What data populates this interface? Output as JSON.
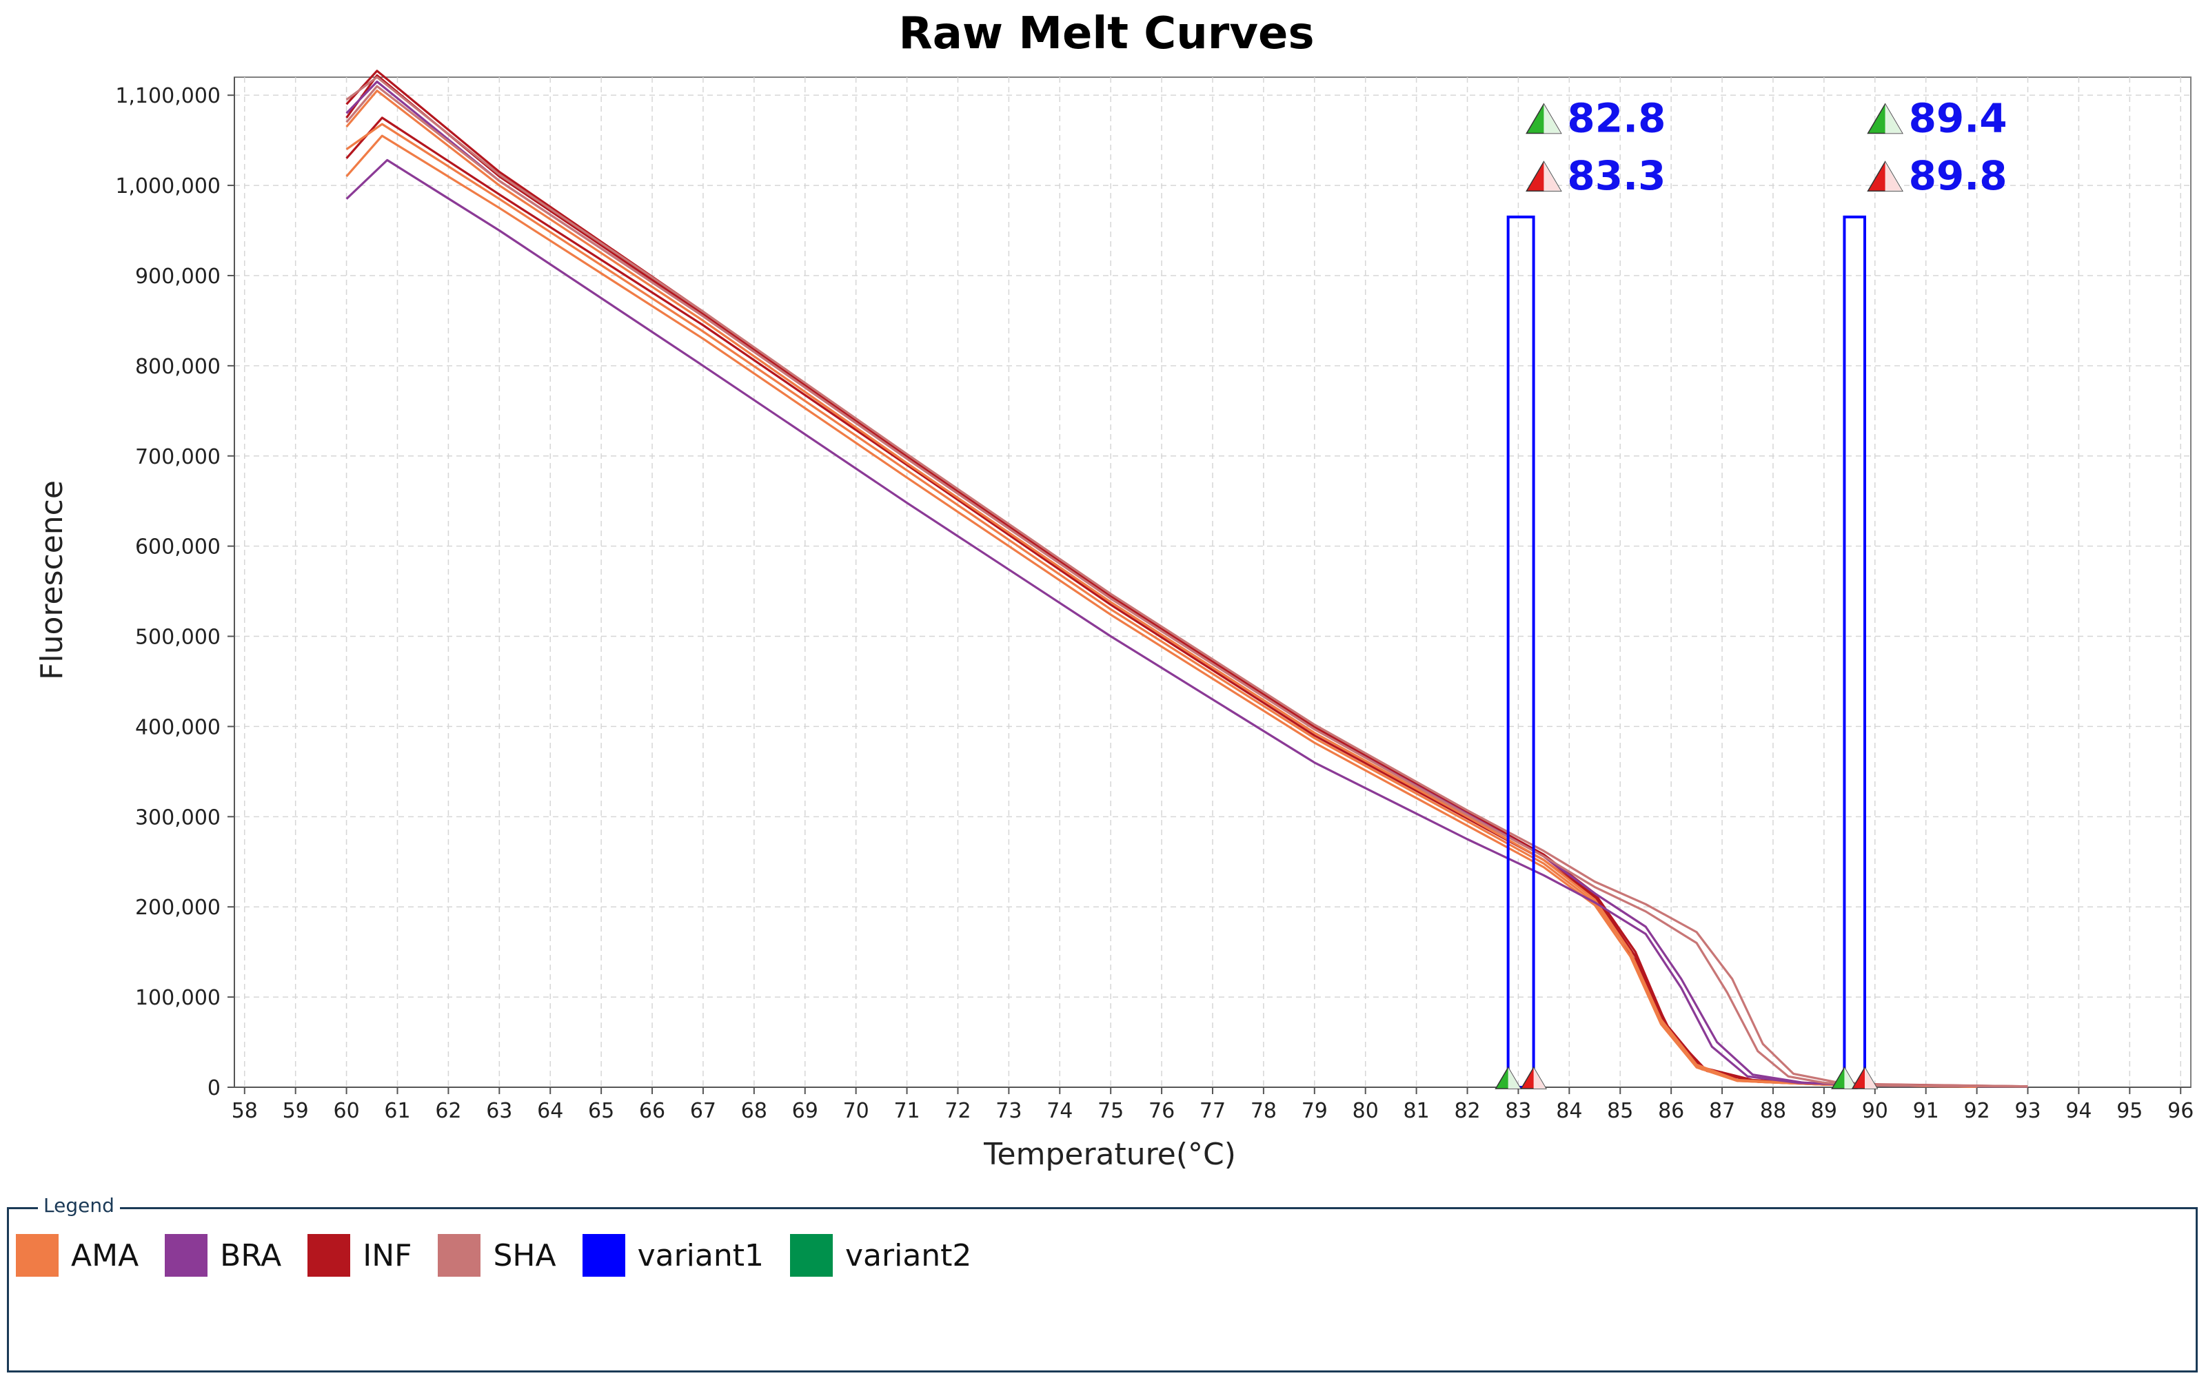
{
  "chart_data": {
    "type": "line",
    "title": "Raw Melt Curves",
    "xlabel": "Temperature(°C)",
    "ylabel": "Fluorescence",
    "xlim": [
      57.8,
      96.2
    ],
    "ylim": [
      0,
      1100000
    ],
    "xticks": [
      58,
      59,
      60,
      61,
      62,
      63,
      64,
      65,
      66,
      67,
      68,
      69,
      70,
      71,
      72,
      73,
      74,
      75,
      76,
      77,
      78,
      79,
      80,
      81,
      82,
      83,
      84,
      85,
      86,
      87,
      88,
      89,
      90,
      91,
      92,
      93,
      94,
      95,
      96
    ],
    "yticks": [
      0,
      100000,
      200000,
      300000,
      400000,
      500000,
      600000,
      700000,
      800000,
      900000,
      1000000,
      1100000
    ],
    "ytick_labels": [
      "0",
      "100,000",
      "200,000",
      "300,000",
      "400,000",
      "500,000",
      "600,000",
      "700,000",
      "800,000",
      "900,000",
      "1,000,000",
      "1,100,000"
    ],
    "grid": true,
    "legend_position": "bottom",
    "legend_title": "Legend",
    "legend": [
      {
        "label": "AMA",
        "color": "#f07c46"
      },
      {
        "label": "BRA",
        "color": "#8b3a96"
      },
      {
        "label": "INF",
        "color": "#b4161e"
      },
      {
        "label": "SHA",
        "color": "#c87676"
      },
      {
        "label": "variant1",
        "color": "#0000ff"
      },
      {
        "label": "variant2",
        "color": "#00914c"
      }
    ],
    "series": [
      {
        "group": "INF",
        "color": "#b4161e",
        "points": [
          [
            60,
            1090000
          ],
          [
            60.6,
            1127000
          ],
          [
            63,
            1015000
          ],
          [
            67,
            860000
          ],
          [
            71,
            700000
          ],
          [
            75,
            545000
          ],
          [
            79,
            400000
          ],
          [
            82,
            305000
          ],
          [
            83.5,
            258000
          ],
          [
            84.5,
            215000
          ],
          [
            85.3,
            150000
          ],
          [
            85.9,
            70000
          ],
          [
            86.6,
            22000
          ],
          [
            87.6,
            8000
          ],
          [
            89,
            4000
          ],
          [
            93,
            1000
          ]
        ]
      },
      {
        "group": "INF",
        "color": "#b4161e",
        "points": [
          [
            60,
            1030000
          ],
          [
            60.7,
            1075000
          ],
          [
            63,
            990000
          ],
          [
            67,
            845000
          ],
          [
            71,
            690000
          ],
          [
            75,
            535000
          ],
          [
            79,
            390000
          ],
          [
            82,
            298000
          ],
          [
            83.5,
            252000
          ],
          [
            84.5,
            210000
          ],
          [
            85.3,
            140000
          ],
          [
            86,
            60000
          ],
          [
            86.7,
            18000
          ],
          [
            87.7,
            6000
          ],
          [
            89,
            3000
          ],
          [
            92,
            800
          ]
        ]
      },
      {
        "group": "INF",
        "color": "#b4161e",
        "points": [
          [
            60,
            1075000
          ],
          [
            60.6,
            1122000
          ],
          [
            63,
            1010000
          ],
          [
            67,
            857000
          ],
          [
            71,
            698000
          ],
          [
            75,
            543000
          ],
          [
            79,
            398000
          ],
          [
            82,
            303000
          ],
          [
            83.5,
            256000
          ],
          [
            84.5,
            212000
          ],
          [
            85.3,
            145000
          ],
          [
            85.9,
            65000
          ],
          [
            86.6,
            20000
          ],
          [
            87.6,
            7000
          ],
          [
            89,
            3000
          ],
          [
            93,
            800
          ]
        ]
      },
      {
        "group": "AMA",
        "color": "#f07c46",
        "points": [
          [
            60,
            1040000
          ],
          [
            60.7,
            1068000
          ],
          [
            63,
            985000
          ],
          [
            67,
            838000
          ],
          [
            71,
            684000
          ],
          [
            75,
            530000
          ],
          [
            79,
            387000
          ],
          [
            82,
            295000
          ],
          [
            83.5,
            248000
          ],
          [
            84.5,
            205000
          ],
          [
            85.2,
            150000
          ],
          [
            85.8,
            75000
          ],
          [
            86.5,
            25000
          ],
          [
            87.3,
            8000
          ],
          [
            89,
            3000
          ],
          [
            92,
            500
          ]
        ]
      },
      {
        "group": "AMA",
        "color": "#f07c46",
        "points": [
          [
            60,
            1010000
          ],
          [
            60.7,
            1055000
          ],
          [
            63,
            975000
          ],
          [
            67,
            830000
          ],
          [
            71,
            676000
          ],
          [
            75,
            524000
          ],
          [
            79,
            382000
          ],
          [
            82,
            290000
          ],
          [
            83.5,
            244000
          ],
          [
            84.5,
            202000
          ],
          [
            85.2,
            145000
          ],
          [
            85.8,
            70000
          ],
          [
            86.5,
            22000
          ],
          [
            87.3,
            7000
          ],
          [
            89,
            3000
          ],
          [
            92,
            500
          ]
        ]
      },
      {
        "group": "AMA",
        "color": "#f07c46",
        "points": [
          [
            60,
            1065000
          ],
          [
            60.6,
            1105000
          ],
          [
            63,
            1000000
          ],
          [
            67,
            850000
          ],
          [
            71,
            692000
          ],
          [
            75,
            538000
          ],
          [
            79,
            393000
          ],
          [
            82,
            300000
          ],
          [
            83.5,
            252000
          ],
          [
            84.5,
            208000
          ],
          [
            85.2,
            150000
          ],
          [
            85.8,
            72000
          ],
          [
            86.5,
            23000
          ],
          [
            87.3,
            7000
          ],
          [
            89,
            3000
          ],
          [
            92,
            500
          ]
        ]
      },
      {
        "group": "BRA",
        "color": "#8b3a96",
        "points": [
          [
            60,
            985000
          ],
          [
            60.8,
            1028000
          ],
          [
            63,
            950000
          ],
          [
            67,
            800000
          ],
          [
            71,
            648000
          ],
          [
            75,
            500000
          ],
          [
            79,
            360000
          ],
          [
            82,
            275000
          ],
          [
            83.5,
            235000
          ],
          [
            84.5,
            205000
          ],
          [
            85.5,
            170000
          ],
          [
            86.2,
            110000
          ],
          [
            86.8,
            45000
          ],
          [
            87.5,
            12000
          ],
          [
            88.5,
            5000
          ],
          [
            90,
            2000
          ],
          [
            93,
            800
          ]
        ]
      },
      {
        "group": "BRA",
        "color": "#8b3a96",
        "points": [
          [
            60,
            1080000
          ],
          [
            60.6,
            1115000
          ],
          [
            63,
            1005000
          ],
          [
            67,
            855000
          ],
          [
            71,
            697000
          ],
          [
            75,
            542000
          ],
          [
            79,
            397000
          ],
          [
            82,
            303000
          ],
          [
            83.5,
            256000
          ],
          [
            84.5,
            215000
          ],
          [
            85.5,
            178000
          ],
          [
            86.2,
            120000
          ],
          [
            86.9,
            50000
          ],
          [
            87.6,
            14000
          ],
          [
            88.6,
            5000
          ],
          [
            90,
            2000
          ],
          [
            93,
            800
          ]
        ]
      },
      {
        "group": "SHA",
        "color": "#c87676",
        "points": [
          [
            60,
            1095000
          ],
          [
            60.6,
            1120000
          ],
          [
            63,
            1012000
          ],
          [
            67,
            860000
          ],
          [
            71,
            702000
          ],
          [
            75,
            547000
          ],
          [
            79,
            402000
          ],
          [
            82,
            307000
          ],
          [
            83.5,
            262000
          ],
          [
            84.5,
            228000
          ],
          [
            85.5,
            203000
          ],
          [
            86.5,
            172000
          ],
          [
            87.2,
            120000
          ],
          [
            87.8,
            48000
          ],
          [
            88.4,
            15000
          ],
          [
            89.2,
            6000
          ],
          [
            90,
            3000
          ],
          [
            93,
            1000
          ]
        ]
      },
      {
        "group": "SHA",
        "color": "#c87676",
        "points": [
          [
            60,
            1070000
          ],
          [
            60.6,
            1110000
          ],
          [
            63,
            1005000
          ],
          [
            67,
            855000
          ],
          [
            71,
            697000
          ],
          [
            75,
            542000
          ],
          [
            79,
            397000
          ],
          [
            82,
            302000
          ],
          [
            83.5,
            256000
          ],
          [
            84.5,
            222000
          ],
          [
            85.5,
            195000
          ],
          [
            86.5,
            160000
          ],
          [
            87.1,
            105000
          ],
          [
            87.7,
            40000
          ],
          [
            88.3,
            12000
          ],
          [
            89,
            5000
          ],
          [
            90,
            2000
          ],
          [
            93,
            800
          ]
        ]
      }
    ],
    "regions": [
      {
        "color": "#0000ff",
        "x0": 82.8,
        "x1": 83.3,
        "y_top": 965000
      },
      {
        "color": "#0000ff",
        "x0": 89.4,
        "x1": 89.8,
        "y_top": 965000
      }
    ],
    "markers": [
      {
        "label": "82.8",
        "color": "#2cb52c",
        "x": 83.5,
        "y": 1070000
      },
      {
        "label": "83.3",
        "color": "#e21c1c",
        "x": 83.5,
        "y": 1006000
      },
      {
        "label": "89.4",
        "color": "#2cb52c",
        "x": 90.2,
        "y": 1070000
      },
      {
        "label": "89.8",
        "color": "#e21c1c",
        "x": 90.2,
        "y": 1006000
      }
    ],
    "axis_markers": [
      {
        "color": "#2cb52c",
        "x": 82.8
      },
      {
        "color": "#e21c1c",
        "x": 83.3
      },
      {
        "color": "#2cb52c",
        "x": 89.4
      },
      {
        "color": "#e21c1c",
        "x": 89.8
      }
    ]
  }
}
